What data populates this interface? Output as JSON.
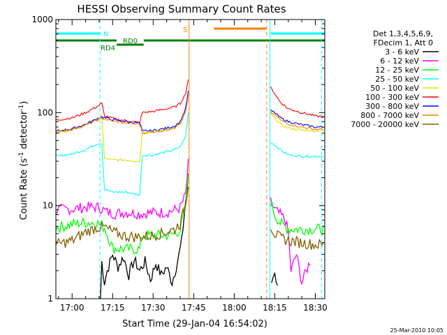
{
  "chart_data": {
    "type": "line",
    "title": "HESSI Observing Summary Count Rates",
    "xlabel": "Start Time (29-Jan-04 16:54:02)",
    "ylabel_main": "Count Rate (s",
    "ylabel_sup1": "-1",
    "ylabel_mid": " detector",
    "ylabel_sup2": "-1",
    "ylabel_end": ")",
    "footer": "25-Mar-2010 10:05",
    "x_ticks": [
      "17:00",
      "17:15",
      "17:30",
      "17:45",
      "18:00",
      "18:15",
      "18:30"
    ],
    "x_tick_minutes": [
      0,
      15,
      30,
      45,
      60,
      75,
      90
    ],
    "x_range_minutes": [
      -6.0,
      93.5
    ],
    "y_scale": "log",
    "y_range": [
      1,
      1000
    ],
    "y_ticks": [
      "1",
      "10",
      "100",
      "1000"
    ],
    "y_tick_values": [
      1,
      10,
      100,
      1000
    ],
    "legend_header": [
      "Det 1,3,4,5,6,9,",
      "FDecim 1, Att 0"
    ],
    "flags": [
      {
        "name": "N",
        "label": "N",
        "color": "#00ffff",
        "segments": [
          [
            -6,
            10.5
          ],
          [
            73.5,
            93.5
          ]
        ]
      },
      {
        "name": "S",
        "label": "S",
        "color": "#ff8000",
        "segments": [
          [
            52.5,
            72.0
          ]
        ]
      },
      {
        "name": "RD0",
        "label": "RD0",
        "color": "#008000",
        "segments": [
          [
            16.5,
            26.5
          ]
        ]
      },
      {
        "name": "RD4",
        "label": "RD4",
        "color": "#008000",
        "segments": [
          [
            -6,
            16.5
          ],
          [
            26.5,
            93.5
          ]
        ]
      }
    ],
    "vlines": [
      {
        "x": -6.0,
        "color": "#00ffff",
        "style": "solid"
      },
      {
        "x": 10.3,
        "color": "#00ffff",
        "style": "dashed"
      },
      {
        "x": 43.3,
        "color": "#ff8000",
        "style": "solid"
      },
      {
        "x": 72.0,
        "color": "#ff8000",
        "style": "dashed"
      },
      {
        "x": 73.2,
        "color": "#00ffff",
        "style": "solid"
      },
      {
        "x": 92.3,
        "color": "#00ffff",
        "style": "dashed"
      }
    ],
    "series": [
      {
        "name": "3 - 6 keV",
        "color": "#000000",
        "points": [
          [
            10.5,
            1
          ],
          [
            11,
            2.5
          ],
          [
            12,
            1.5
          ],
          [
            13,
            2
          ],
          [
            15,
            3
          ],
          [
            17,
            2.2
          ],
          [
            19,
            2.8
          ],
          [
            21,
            1.8
          ],
          [
            23,
            2.6
          ],
          [
            25,
            2
          ],
          [
            27,
            2.5
          ],
          [
            29,
            1.6
          ],
          [
            31,
            2.4
          ],
          [
            33,
            1.8
          ],
          [
            35,
            2.2
          ],
          [
            37,
            1.5
          ],
          [
            39,
            2.5
          ],
          [
            40.5,
            4
          ],
          [
            41.5,
            8
          ],
          [
            42.5,
            15
          ],
          [
            43.0,
            20
          ],
          null,
          [
            73.8,
            1.5
          ],
          [
            75,
            2
          ],
          [
            76,
            1.3
          ]
        ]
      },
      {
        "name": "6 - 12 keV",
        "color": "#ff00ff",
        "points": [
          [
            -6,
            9
          ],
          [
            0,
            9.2
          ],
          [
            5,
            9.6
          ],
          [
            10,
            9.6
          ],
          [
            13,
            8.5
          ],
          [
            16,
            8.2
          ],
          [
            20,
            8.5
          ],
          [
            25,
            8.2
          ],
          [
            30,
            8.4
          ],
          [
            35,
            8.5
          ],
          [
            38,
            9
          ],
          [
            40,
            9.5
          ],
          [
            42,
            13
          ],
          [
            43,
            28
          ],
          null,
          [
            73.5,
            11
          ],
          [
            75,
            9
          ],
          [
            77,
            8
          ],
          [
            79,
            7
          ],
          [
            80,
            5
          ],
          [
            81,
            2
          ],
          [
            83,
            3
          ],
          [
            85,
            1.5
          ],
          [
            88,
            2.5
          ]
        ]
      },
      {
        "name": "12 - 25 keV",
        "color": "#00ff00",
        "points": [
          [
            -6,
            5.8
          ],
          [
            0,
            6.3
          ],
          [
            5,
            6.6
          ],
          [
            9,
            6.6
          ],
          [
            12,
            5.8
          ],
          [
            15,
            3.5
          ],
          [
            20,
            3.4
          ],
          [
            25,
            3.4
          ],
          [
            26,
            4.7
          ],
          [
            30,
            4.8
          ],
          [
            35,
            4.8
          ],
          [
            38,
            5
          ],
          [
            40,
            5.5
          ],
          [
            42,
            10
          ],
          [
            43,
            22
          ],
          null,
          [
            73.5,
            11
          ],
          [
            75,
            8
          ],
          [
            77,
            6.5
          ],
          [
            80,
            5.6
          ],
          [
            85,
            5.6
          ],
          [
            90,
            5.6
          ],
          [
            93,
            5.6
          ]
        ]
      },
      {
        "name": "25 - 50 keV",
        "color": "#00ffff",
        "points": [
          [
            -6,
            34
          ],
          [
            0,
            36
          ],
          [
            5,
            40
          ],
          [
            9,
            46
          ],
          [
            11,
            47
          ],
          [
            12,
            15
          ],
          [
            15,
            14
          ],
          [
            20,
            14
          ],
          [
            25,
            13
          ],
          [
            26,
            35
          ],
          [
            30,
            35
          ],
          [
            35,
            38
          ],
          [
            38,
            40
          ],
          [
            40,
            43
          ],
          [
            42,
            55
          ],
          [
            43,
            100
          ],
          null,
          [
            73.5,
            48
          ],
          [
            75,
            45
          ],
          [
            77,
            40
          ],
          [
            80,
            35
          ],
          [
            85,
            34
          ],
          [
            90,
            34
          ],
          [
            93,
            34
          ]
        ]
      },
      {
        "name": "50 - 100 keV",
        "color": "#e0e000",
        "points": [
          [
            -6,
            60
          ],
          [
            0,
            65
          ],
          [
            5,
            75
          ],
          [
            9,
            85
          ],
          [
            11,
            88
          ],
          [
            12,
            32
          ],
          [
            15,
            31
          ],
          [
            20,
            31
          ],
          [
            25,
            30
          ],
          [
            26,
            60
          ],
          [
            30,
            62
          ],
          [
            35,
            66
          ],
          [
            38,
            68
          ],
          [
            40,
            75
          ],
          [
            42,
            100
          ],
          [
            43,
            160
          ],
          null,
          [
            73.5,
            95
          ],
          [
            75,
            88
          ],
          [
            77,
            75
          ],
          [
            80,
            68
          ],
          [
            85,
            65
          ],
          [
            90,
            64
          ],
          [
            93,
            64
          ]
        ]
      },
      {
        "name": "100 - 300 keV",
        "color": "#ff0000",
        "points": [
          [
            -6,
            83
          ],
          [
            0,
            88
          ],
          [
            5,
            100
          ],
          [
            9,
            115
          ],
          [
            11,
            125
          ],
          [
            12,
            92
          ],
          [
            16,
            85
          ],
          [
            20,
            82
          ],
          [
            25,
            78
          ],
          [
            26,
            100
          ],
          [
            30,
            103
          ],
          [
            35,
            110
          ],
          [
            38,
            115
          ],
          [
            40,
            125
          ],
          [
            42,
            160
          ],
          [
            43,
            230
          ],
          null,
          [
            73.5,
            185
          ],
          [
            75,
            160
          ],
          [
            77,
            130
          ],
          [
            80,
            110
          ],
          [
            85,
            100
          ],
          [
            90,
            92
          ],
          [
            93,
            90
          ]
        ]
      },
      {
        "name": "300 - 800 keV",
        "color": "#0000ff",
        "points": [
          [
            -6,
            63
          ],
          [
            0,
            67
          ],
          [
            5,
            75
          ],
          [
            9,
            85
          ],
          [
            11,
            90
          ],
          [
            12,
            88
          ],
          [
            16,
            83
          ],
          [
            20,
            80
          ],
          [
            25,
            77
          ],
          [
            26,
            63
          ],
          [
            30,
            64
          ],
          [
            35,
            68
          ],
          [
            38,
            72
          ],
          [
            40,
            80
          ],
          [
            42,
            110
          ],
          [
            43,
            170
          ],
          null,
          [
            73.5,
            105
          ],
          [
            75,
            100
          ],
          [
            77,
            88
          ],
          [
            80,
            80
          ],
          [
            85,
            74
          ],
          [
            90,
            70
          ],
          [
            93,
            70
          ]
        ]
      },
      {
        "name": "800 - 7000 keV",
        "color": "#ff8000",
        "points": [
          [
            -6,
            62
          ],
          [
            0,
            66
          ],
          [
            5,
            73
          ],
          [
            9,
            82
          ],
          [
            11,
            87
          ],
          [
            12,
            85
          ],
          [
            16,
            80
          ],
          [
            20,
            77
          ],
          [
            25,
            75
          ],
          [
            26,
            61
          ],
          [
            30,
            62
          ],
          [
            35,
            65
          ],
          [
            38,
            70
          ],
          [
            40,
            76
          ],
          [
            42,
            100
          ],
          [
            43,
            150
          ],
          null,
          [
            73.5,
            100
          ],
          [
            75,
            95
          ],
          [
            77,
            84
          ],
          [
            80,
            75
          ],
          [
            85,
            70
          ],
          [
            90,
            66
          ],
          [
            93,
            66
          ]
        ]
      },
      {
        "name": "7000 - 20000 keV",
        "color": "#806000",
        "points": [
          [
            -6,
            3.8
          ],
          [
            0,
            4.2
          ],
          [
            5,
            5.2
          ],
          [
            9,
            5.8
          ],
          [
            12,
            5.9
          ],
          [
            15,
            5.2
          ],
          [
            20,
            4.7
          ],
          [
            25,
            4.6
          ],
          [
            30,
            4.8
          ],
          [
            35,
            5.2
          ],
          [
            38,
            5.6
          ],
          [
            40,
            6.5
          ],
          [
            42,
            10
          ],
          [
            43,
            18
          ],
          null,
          [
            73.5,
            6
          ],
          [
            75,
            5
          ],
          [
            77,
            4.5
          ],
          [
            80,
            4.2
          ],
          [
            85,
            4
          ],
          [
            90,
            3.8
          ],
          [
            93,
            3.8
          ]
        ]
      }
    ]
  }
}
